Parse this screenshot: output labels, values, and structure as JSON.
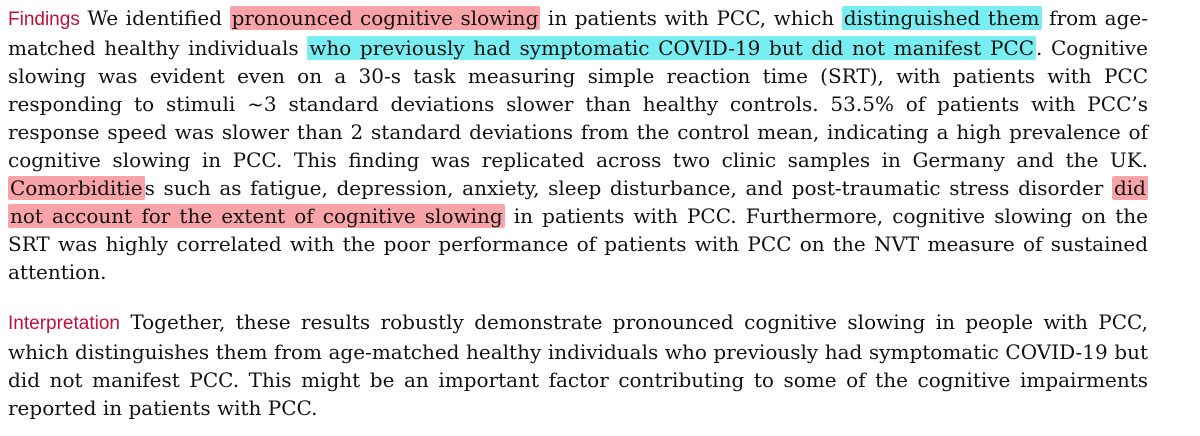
{
  "colors": {
    "lead": "#c0103a",
    "highlight_red": "#f7a3a8",
    "highlight_cyan": "#79eef2",
    "text": "#111111"
  },
  "findings": {
    "lead": "Findings",
    "segments": [
      {
        "text": " We identified ",
        "hl": null
      },
      {
        "text": "pronounced cognitive slowing",
        "hl": "red"
      },
      {
        "text": " in patients with PCC, which ",
        "hl": null
      },
      {
        "text": "distinguished them",
        "hl": "cyan"
      },
      {
        "text": " from age-matched healthy individuals ",
        "hl": null
      },
      {
        "text": "who previously had symptomatic COVID-19 but did not manifest PCC",
        "hl": "cyan"
      },
      {
        "text": ". Cognitive slowing was evident even on a 30-s task measuring simple reaction time (SRT), with patients with PCC responding to stimuli ~3 standard deviations slower than healthy controls. 53.5% of patients with PCC’s response speed was slower than 2 standard deviations from the control mean, indicating a high prevalence of cognitive slowing in PCC. This finding was replicated across two clinic samples in Germany and the UK. ",
        "hl": null
      },
      {
        "text": "Comorbiditie",
        "hl": "red"
      },
      {
        "text": "s such as fatigue, depression, anxiety, sleep disturbance, and post-traumatic stress disorder ",
        "hl": null
      },
      {
        "text": "did not account for the extent of cognitive slowing",
        "hl": "red"
      },
      {
        "text": " in patients with PCC. Furthermore, cognitive slowing on the SRT was highly correlated with the poor performance of patients with PCC on the NVT measure of sustained attention.",
        "hl": null
      }
    ]
  },
  "interpretation": {
    "lead": "Interpretation",
    "segments": [
      {
        "text": " Together, these results robustly demonstrate pronounced cognitive slowing in people with PCC, which distinguishes them from age-matched healthy individuals who previously had symptomatic COVID-19 but did not manifest PCC. This might be an important factor contributing to some of the cognitive impairments reported in patients with PCC.",
        "hl": null
      }
    ]
  }
}
